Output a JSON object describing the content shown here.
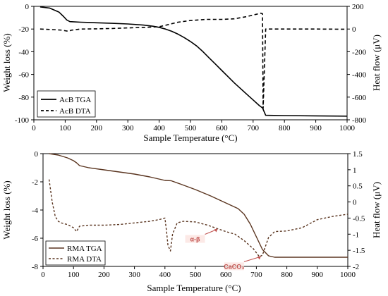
{
  "chart_data": [
    {
      "type": "line",
      "xlabel": "Sample Temperature (°C)",
      "ylabel": "Weight loss (%)",
      "y2label": "Heat flow (μV)",
      "xlim": [
        0,
        1000
      ],
      "ylim": [
        -100,
        0
      ],
      "y2lim": [
        -800,
        200
      ],
      "xticks": [
        "0",
        "100",
        "200",
        "300",
        "400",
        "500",
        "600",
        "700",
        "800",
        "900",
        "1000"
      ],
      "yticks": [
        "0",
        "-20",
        "-40",
        "-60",
        "-80",
        "-100"
      ],
      "y2ticks": [
        "200",
        "0",
        "-200",
        "-400",
        "-600",
        "-800"
      ],
      "grid": false,
      "legend_position": "bottom-left",
      "colors": {
        "tga": "#000000",
        "dta": "#000000",
        "zero_line": "#000000"
      },
      "series": [
        {
          "name": "AcB TGA",
          "axis": "left",
          "style": "solid",
          "x": [
            20,
            50,
            80,
            95,
            105,
            115,
            150,
            200,
            250,
            300,
            350,
            380,
            400,
            420,
            440,
            460,
            480,
            500,
            520,
            540,
            560,
            580,
            600,
            620,
            640,
            660,
            680,
            700,
            720,
            730,
            740,
            800,
            900,
            1000
          ],
          "y": [
            -0.5,
            -1.5,
            -5,
            -9,
            -12,
            -13.5,
            -14,
            -14.5,
            -15,
            -15.5,
            -16.5,
            -17.5,
            -18.5,
            -20,
            -22,
            -24.5,
            -27.5,
            -31,
            -35,
            -40,
            -45.5,
            -51,
            -56.5,
            -62,
            -67.5,
            -72.5,
            -77.5,
            -82.5,
            -87.5,
            -89.5,
            -96,
            -96.3,
            -96.5,
            -96.8
          ]
        },
        {
          "name": "AcB DTA",
          "axis": "right",
          "style": "dashed",
          "x": [
            20,
            60,
            90,
            100,
            110,
            120,
            150,
            200,
            250,
            300,
            350,
            400,
            430,
            460,
            500,
            550,
            600,
            640,
            680,
            710,
            725,
            730,
            732,
            740,
            800,
            900,
            1000
          ],
          "y": [
            0,
            -5,
            -10,
            -15,
            -20,
            -10,
            0,
            2,
            5,
            10,
            14,
            20,
            40,
            60,
            75,
            85,
            85,
            90,
            110,
            130,
            140,
            135,
            -700,
            0,
            0,
            0,
            -2
          ]
        }
      ]
    },
    {
      "type": "line",
      "xlabel": "Sample Temperature (°C)",
      "ylabel": "Weight loss (%)",
      "y2label": "Heat flow (μV)",
      "xlim": [
        0,
        1000
      ],
      "ylim": [
        -8,
        0
      ],
      "y2lim": [
        -2,
        1.5
      ],
      "xticks": [
        "0",
        "100",
        "200",
        "300",
        "400",
        "500",
        "600",
        "700",
        "800",
        "900",
        "1000"
      ],
      "yticks": [
        "0",
        "-2",
        "-4",
        "-6",
        "-8"
      ],
      "y2ticks": [
        "1.5",
        "1",
        "0.5",
        "0",
        "-0.5",
        "-1",
        "-1.5",
        "-2"
      ],
      "grid": false,
      "legend_position": "bottom-left",
      "colors": {
        "tga": "#5a3520",
        "dta": "#5a3520",
        "annotation_arrow": "#c0504d",
        "annotation_text": "#c0504d"
      },
      "series": [
        {
          "name": "RMA TGA",
          "axis": "left",
          "style": "solid",
          "x": [
            20,
            50,
            80,
            100,
            110,
            120,
            150,
            200,
            250,
            300,
            350,
            380,
            400,
            420,
            450,
            500,
            550,
            600,
            640,
            660,
            680,
            700,
            720,
            740,
            760,
            800,
            900,
            1000
          ],
          "y": [
            0,
            -0.1,
            -0.3,
            -0.5,
            -0.65,
            -0.85,
            -1.0,
            -1.15,
            -1.3,
            -1.45,
            -1.65,
            -1.8,
            -1.9,
            -1.92,
            -2.15,
            -2.55,
            -3.0,
            -3.5,
            -3.9,
            -4.3,
            -5.0,
            -5.9,
            -6.8,
            -7.25,
            -7.35,
            -7.35,
            -7.35,
            -7.35
          ]
        },
        {
          "name": "RMA DTA",
          "axis": "right",
          "style": "dashed",
          "x": [
            20,
            30,
            40,
            50,
            60,
            80,
            100,
            110,
            120,
            150,
            200,
            250,
            300,
            350,
            380,
            400,
            405,
            410,
            418,
            425,
            440,
            460,
            500,
            540,
            570,
            600,
            630,
            660,
            690,
            710,
            720,
            740,
            760,
            800,
            850,
            900,
            950,
            1000
          ],
          "y": [
            0.7,
            0.0,
            -0.45,
            -0.6,
            -0.65,
            -0.7,
            -0.8,
            -0.92,
            -0.75,
            -0.72,
            -0.72,
            -0.7,
            -0.65,
            -0.6,
            -0.55,
            -0.5,
            -0.9,
            -1.35,
            -1.52,
            -1.0,
            -0.65,
            -0.6,
            -0.62,
            -0.72,
            -0.82,
            -0.92,
            -1.0,
            -1.2,
            -1.45,
            -1.7,
            -1.65,
            -1.1,
            -0.92,
            -0.9,
            -0.8,
            -0.55,
            -0.45,
            -0.38
          ]
        }
      ],
      "annotations": [
        {
          "label": "α-β",
          "x": 573,
          "y2": -0.83
        },
        {
          "label": "CaCO₃",
          "x": 715,
          "y2": -1.68
        }
      ]
    }
  ]
}
